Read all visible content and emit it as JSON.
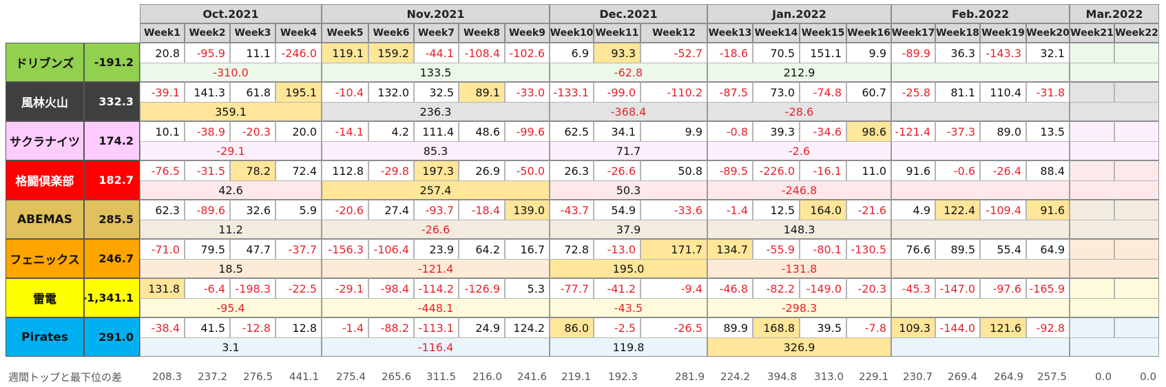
{
  "months": [
    "Oct.2021",
    "Nov.2021",
    "Dec.2021",
    "Jan.2022",
    "Feb.2022",
    "Mar.2022"
  ],
  "weeks": [
    "Week1",
    "Week2",
    "Week3",
    "Week4",
    "Week5",
    "Week6",
    "Week7",
    "Week8",
    "Week9",
    "Week10",
    "Week11",
    "Week12",
    "Week13",
    "Week14",
    "Week15",
    "Week16",
    "Week17",
    "Week18",
    "Week19",
    "Week20",
    "Week21",
    "Week22"
  ],
  "teams": [
    {
      "name": "ドリブンズ",
      "total": "-191.2",
      "name_bg": "#92d050",
      "name_color": "#111111",
      "row_bg": "#ebf8ea",
      "weeks": [
        "20.8",
        "-95.9",
        "11.1",
        "-246.0",
        "119.1",
        "159.2",
        "-44.1",
        "-108.4",
        "-102.6",
        "6.9",
        "93.3",
        "-52.7",
        "-18.6",
        "70.5",
        "151.1",
        "9.9",
        "-89.9",
        "36.3",
        "-143.3",
        "32.1",
        "",
        ""
      ],
      "highlight": [
        4,
        5,
        10
      ],
      "monthly": [
        "-310.0",
        "133.5",
        "-62.8",
        "212.9",
        "",
        ""
      ]
    },
    {
      "name": "風林火山",
      "total": "332.3",
      "name_bg": "#3f3f3f",
      "name_color": "#ffffff",
      "row_bg": "#e3e3e3",
      "weeks": [
        "-39.1",
        "141.3",
        "61.8",
        "195.1",
        "-10.4",
        "132.0",
        "32.5",
        "89.1",
        "-33.0",
        "-133.1",
        "-99.0",
        "-110.2",
        "-87.5",
        "73.0",
        "-74.8",
        "60.7",
        "-25.8",
        "81.1",
        "110.4",
        "-31.8",
        "",
        ""
      ],
      "highlight": [
        3,
        7
      ],
      "monthly": [
        "359.1",
        "236.3",
        "-368.4",
        "-28.6",
        "",
        ""
      ],
      "month_highlight": [
        0
      ]
    },
    {
      "name": "サクラナイツ",
      "total": "174.2",
      "name_bg": "#ffccff",
      "name_color": "#111111",
      "row_bg": "#fdf0fd",
      "weeks": [
        "10.1",
        "-38.9",
        "-20.3",
        "20.0",
        "-14.1",
        "4.2",
        "111.4",
        "48.6",
        "-99.6",
        "62.5",
        "34.1",
        "9.9",
        "-0.8",
        "39.3",
        "-34.6",
        "98.6",
        "-121.4",
        "-37.3",
        "89.0",
        "13.5",
        "",
        ""
      ],
      "highlight": [
        15
      ],
      "monthly": [
        "-29.1",
        "85.3",
        "71.7",
        "-2.6",
        "",
        ""
      ]
    },
    {
      "name": "格闘倶楽部",
      "total": "182.7",
      "name_bg": "#ff0000",
      "name_color": "#ffffff",
      "row_bg": "#fde9e9",
      "weeks": [
        "-76.5",
        "-31.5",
        "78.2",
        "72.4",
        "112.8",
        "-29.8",
        "197.3",
        "26.9",
        "-50.0",
        "26.3",
        "-26.6",
        "50.8",
        "-89.5",
        "-226.0",
        "-16.1",
        "11.0",
        "91.6",
        "-0.6",
        "-26.4",
        "88.4",
        "",
        ""
      ],
      "highlight": [
        2,
        6
      ],
      "monthly": [
        "42.6",
        "257.4",
        "50.3",
        "-246.8",
        "",
        ""
      ],
      "month_highlight": [
        1
      ]
    },
    {
      "name": "ABEMAS",
      "total": "285.5",
      "name_bg": "#e0c15c",
      "name_color": "#111111",
      "row_bg": "#f2ece0",
      "weeks": [
        "62.3",
        "-89.6",
        "32.6",
        "5.9",
        "-20.6",
        "27.4",
        "-93.7",
        "-18.4",
        "139.0",
        "-43.7",
        "54.9",
        "-33.6",
        "-1.4",
        "12.5",
        "164.0",
        "-21.6",
        "4.9",
        "122.4",
        "-109.4",
        "91.6",
        "",
        ""
      ],
      "highlight": [
        8,
        14,
        17,
        19
      ],
      "monthly": [
        "11.2",
        "-26.6",
        "37.9",
        "148.3",
        "",
        ""
      ]
    },
    {
      "name": "フェニックス",
      "total": "246.7",
      "name_bg": "#ffa500",
      "name_color": "#111111",
      "row_bg": "#fdebd8",
      "weeks": [
        "-71.0",
        "79.5",
        "47.7",
        "-37.7",
        "-156.3",
        "-106.4",
        "23.9",
        "64.2",
        "16.7",
        "72.8",
        "-13.0",
        "171.7",
        "134.7",
        "-55.9",
        "-80.1",
        "-130.5",
        "76.6",
        "89.5",
        "55.4",
        "64.9",
        "",
        ""
      ],
      "highlight": [
        11,
        12
      ],
      "monthly": [
        "18.5",
        "-121.4",
        "195.0",
        "-131.8",
        "",
        ""
      ],
      "month_highlight": [
        2
      ]
    },
    {
      "name": "雷電",
      "total": "-1,341.1",
      "name_bg": "#ffff00",
      "name_color": "#111111",
      "row_bg": "#fdfbdc",
      "weeks": [
        "131.8",
        "-6.4",
        "-198.3",
        "-22.5",
        "-29.1",
        "-98.4",
        "-114.2",
        "-126.9",
        "5.3",
        "-77.7",
        "-41.2",
        "-9.4",
        "-46.8",
        "-82.2",
        "-149.0",
        "-20.3",
        "-45.3",
        "-147.0",
        "-97.6",
        "-165.9",
        "",
        ""
      ],
      "highlight": [
        0
      ],
      "monthly": [
        "-95.4",
        "-448.1",
        "-43.5",
        "-298.3",
        "",
        ""
      ]
    },
    {
      "name": "Pirates",
      "total": "291.0",
      "name_bg": "#00b0f0",
      "name_color": "#111111",
      "row_bg": "#e9f5fb",
      "weeks": [
        "-38.4",
        "41.5",
        "-12.8",
        "12.8",
        "-1.4",
        "-88.2",
        "-113.1",
        "24.9",
        "124.2",
        "86.0",
        "-2.5",
        "-26.5",
        "89.9",
        "168.8",
        "39.5",
        "-7.8",
        "109.3",
        "-144.0",
        "121.6",
        "-92.8",
        "",
        ""
      ],
      "highlight": [
        9,
        13,
        16,
        18
      ],
      "monthly": [
        "3.1",
        "-116.4",
        "119.8",
        "326.9",
        "",
        ""
      ],
      "month_highlight": [
        3
      ]
    }
  ],
  "diff_label": "週間トップと最下位の差",
  "diffs": [
    "208.3",
    "237.2",
    "276.5",
    "441.1",
    "275.4",
    "265.6",
    "311.5",
    "216.0",
    "241.6",
    "219.1",
    "192.3",
    "281.9",
    "224.2",
    "394.8",
    "313.0",
    "229.1",
    "230.7",
    "269.4",
    "264.9",
    "257.5",
    "0.0",
    "0.0"
  ],
  "colors": {
    "negative": "#e8202a",
    "highlight_week": "#ffe699",
    "highlight_month": "#ffe699",
    "header_bg": "#d9d9d9"
  }
}
